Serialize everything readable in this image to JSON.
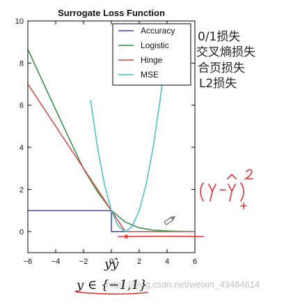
{
  "chart_data": {
    "type": "line",
    "title": "Surrogate Loss Function",
    "xlim": [
      -6,
      6
    ],
    "ylim": [
      -1,
      10
    ],
    "xticks": [
      -6,
      -4,
      -2,
      0,
      2,
      4,
      6
    ],
    "yticks": [
      0,
      2,
      4,
      6,
      8,
      10
    ],
    "grid": false,
    "legend_position": "top-right",
    "series": [
      {
        "name": "Accuracy",
        "color": "#3b3bbf",
        "x": [
          -6,
          0,
          0,
          6
        ],
        "y": [
          1,
          1,
          0,
          0
        ]
      },
      {
        "name": "Logistic",
        "color": "#2e8b3e",
        "x": [
          -6,
          -5,
          -4,
          -3,
          -2,
          -1,
          0,
          1,
          2,
          3,
          4,
          5,
          6
        ],
        "y": [
          8.66,
          7.21,
          5.79,
          4.37,
          2.98,
          1.9,
          1.0,
          0.45,
          0.18,
          0.07,
          0.03,
          0.01,
          0.0
        ]
      },
      {
        "name": "Hinge",
        "color": "#d9423f",
        "x": [
          -6,
          1,
          6
        ],
        "y": [
          7,
          0,
          0
        ]
      },
      {
        "name": "MSE",
        "color": "#3fbfc6",
        "x": [
          -1.5,
          -1,
          -0.5,
          0,
          0.5,
          1,
          1.5,
          2,
          2.5,
          3,
          3.5,
          4
        ],
        "y": [
          6.25,
          4,
          2.25,
          1,
          0.25,
          0,
          0.25,
          1,
          2.25,
          4,
          6.25,
          9
        ]
      }
    ]
  },
  "annotations": {
    "side_labels": [
      "0/1损失",
      "交叉熵损失",
      "合页损失",
      "L2损失"
    ],
    "axis_formula": "yŷ",
    "label_formula": "y ∈ {−1,1}",
    "watermark": "https://blog.csdn.net/weixin_43484614"
  }
}
